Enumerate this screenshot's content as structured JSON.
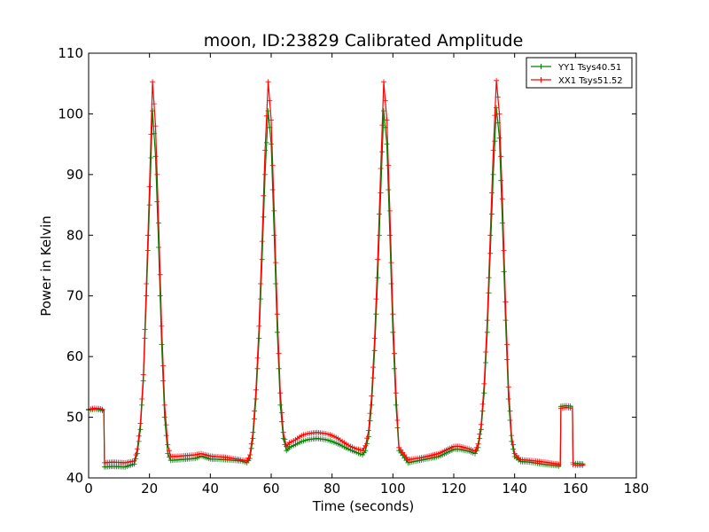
{
  "chart_data": {
    "type": "line",
    "title": "moon, ID:23829 Calibrated Amplitude",
    "xlabel": "Time (seconds)",
    "ylabel": "Power in Kelvin",
    "xlim": [
      0,
      180
    ],
    "ylim": [
      40,
      110
    ],
    "xticks": [
      "0",
      "20",
      "40",
      "60",
      "80",
      "100",
      "120",
      "140",
      "160",
      "180"
    ],
    "yticks": [
      "40",
      "50",
      "60",
      "70",
      "80",
      "90",
      "100",
      "110"
    ],
    "grid": false,
    "legend_position": "top-right",
    "series": [
      {
        "name": "YY1 Tsys40.51",
        "color": "#008000",
        "x": [
          0,
          2,
          4,
          5,
          5.2,
          8,
          12,
          15,
          16,
          17,
          18,
          19,
          20,
          21,
          22,
          23,
          24,
          25,
          26,
          27,
          30,
          35,
          37,
          40,
          45,
          50,
          52,
          53,
          54,
          55,
          56,
          57,
          58,
          59,
          60,
          61,
          62,
          63,
          64,
          65,
          66,
          68,
          70,
          72,
          75,
          78,
          80,
          82,
          84,
          86,
          88,
          90,
          91,
          92,
          93,
          94,
          95,
          96,
          97,
          98,
          99,
          100,
          101,
          102,
          105,
          110,
          115,
          120,
          122,
          125,
          127,
          128,
          129,
          130,
          131,
          132,
          133,
          134,
          135,
          136,
          137,
          138,
          139,
          140,
          142,
          145,
          150,
          154,
          155,
          155.2,
          157,
          159,
          159.2,
          160,
          163
        ],
        "values": [
          51.2,
          51.3,
          51.2,
          51.0,
          41.8,
          41.9,
          41.8,
          42.3,
          44.0,
          48.0,
          56.0,
          70.0,
          85.0,
          100.5,
          93.0,
          78.0,
          62.0,
          50.0,
          44.0,
          42.9,
          43.0,
          43.2,
          43.6,
          43.1,
          43.0,
          42.8,
          42.5,
          43.2,
          46.5,
          53.0,
          63.0,
          76.0,
          90.0,
          100.5,
          95.0,
          80.0,
          64.0,
          52.0,
          46.5,
          44.5,
          45.0,
          45.5,
          46.0,
          46.3,
          46.5,
          46.3,
          46.0,
          45.6,
          45.1,
          44.6,
          44.2,
          43.8,
          44.5,
          46.8,
          52.0,
          61.0,
          73.0,
          87.0,
          100.5,
          95.0,
          80.0,
          64.0,
          52.0,
          44.5,
          42.5,
          43.0,
          43.5,
          44.7,
          44.7,
          44.4,
          44.0,
          45.0,
          48.0,
          54.0,
          64.0,
          77.0,
          90.0,
          101.0,
          96.0,
          82.0,
          66.0,
          53.0,
          46.0,
          43.5,
          42.7,
          42.6,
          42.2,
          42.0,
          41.9,
          51.8,
          51.9,
          51.8,
          42.5,
          42.4,
          42.3
        ]
      },
      {
        "name": "XX1 Tsys51.52",
        "color": "#ff0000",
        "x": [
          0,
          2,
          4,
          5,
          5.2,
          8,
          12,
          15,
          16,
          17,
          18,
          19,
          20,
          21,
          22,
          23,
          24,
          25,
          26,
          27,
          30,
          35,
          37,
          40,
          45,
          50,
          52,
          53,
          54,
          55,
          56,
          57,
          58,
          59,
          60,
          61,
          62,
          63,
          64,
          65,
          66,
          68,
          70,
          72,
          75,
          78,
          80,
          82,
          84,
          86,
          88,
          90,
          91,
          92,
          93,
          94,
          95,
          96,
          97,
          98,
          99,
          100,
          101,
          102,
          105,
          110,
          115,
          120,
          122,
          125,
          127,
          128,
          129,
          130,
          131,
          132,
          133,
          134,
          135,
          136,
          137,
          138,
          139,
          140,
          142,
          145,
          150,
          154,
          155,
          155.2,
          157,
          159,
          159.2,
          160,
          163
        ],
        "values": [
          51.3,
          51.5,
          51.4,
          51.2,
          42.5,
          42.6,
          42.5,
          42.8,
          44.8,
          49.0,
          57.0,
          72.0,
          88.0,
          105.3,
          98.0,
          82.0,
          65.0,
          52.0,
          45.5,
          43.5,
          43.6,
          43.8,
          44.0,
          43.6,
          43.4,
          43.0,
          42.8,
          43.8,
          47.5,
          54.5,
          65.0,
          79.0,
          94.0,
          105.3,
          99.0,
          84.0,
          67.0,
          54.0,
          47.5,
          45.2,
          45.8,
          46.3,
          47.0,
          47.3,
          47.5,
          47.3,
          47.0,
          46.5,
          45.8,
          45.2,
          44.8,
          44.5,
          45.3,
          47.8,
          53.5,
          63.0,
          76.0,
          91.0,
          105.3,
          99.0,
          84.0,
          67.0,
          54.0,
          45.0,
          43.0,
          43.4,
          44.0,
          45.2,
          45.2,
          44.8,
          44.4,
          45.6,
          48.8,
          55.5,
          66.0,
          80.0,
          94.0,
          105.5,
          100.0,
          86.0,
          69.0,
          55.0,
          47.0,
          44.0,
          43.0,
          42.9,
          42.6,
          42.3,
          42.2,
          51.5,
          51.6,
          51.5,
          42.2,
          42.1,
          42.1
        ]
      }
    ]
  }
}
